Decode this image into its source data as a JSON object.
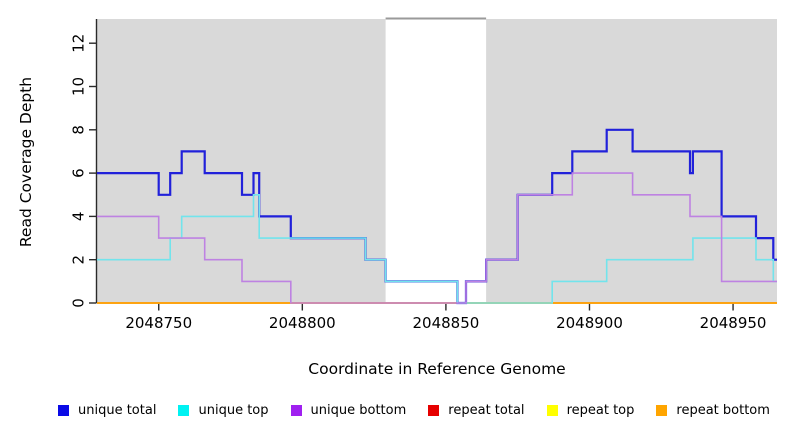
{
  "chart_data": {
    "type": "line",
    "subtype": "step",
    "title": "",
    "xlabel": "Coordinate in Reference Genome",
    "ylabel": "Read Coverage Depth",
    "xlim": [
      2048728.5,
      2048965.3
    ],
    "ylim": [
      0,
      13.1
    ],
    "x_ticks": [
      2048750,
      2048800,
      2048850,
      2048900,
      2048950
    ],
    "y_ticks": [
      0,
      2,
      4,
      6,
      8,
      10,
      12
    ],
    "grid": "off",
    "legend_position": "bottom",
    "plot_background": "#D9D9D9",
    "highlight_region": {
      "x0": 2048829,
      "x1": 2048864,
      "fill": "#FFFFFF",
      "top_border": "#9A9A9A"
    },
    "series": [
      {
        "name": "repeat total",
        "legend_color": "#E60000",
        "line_color": "#C41E3A",
        "line_width": 1.5,
        "xend": 2048965.3,
        "steps": [
          [
            2048728.5,
            0
          ]
        ]
      },
      {
        "name": "repeat top",
        "legend_color": "#FFFF00",
        "line_color": "#FFFF00",
        "line_width": 1.5,
        "xend": 2048965.3,
        "steps": [
          [
            2048728.5,
            0
          ]
        ]
      },
      {
        "name": "repeat bottom",
        "legend_color": "#FFA500",
        "line_color": "#FF9F0A",
        "line_width": 1.8,
        "xend": 2048965.3,
        "steps": [
          [
            2048728.5,
            0
          ]
        ]
      },
      {
        "name": "unique total",
        "legend_color": "#0A0AE6",
        "line_color": "#2121DA",
        "line_width": 2.2,
        "xend": 2048965.3,
        "steps": [
          [
            2048728.5,
            6
          ],
          [
            2048750,
            5
          ],
          [
            2048754,
            6
          ],
          [
            2048758,
            7
          ],
          [
            2048766,
            6
          ],
          [
            2048779,
            5
          ],
          [
            2048783,
            6
          ],
          [
            2048785,
            4
          ],
          [
            2048796,
            3
          ],
          [
            2048822,
            2
          ],
          [
            2048829,
            1
          ],
          [
            2048854,
            0
          ],
          [
            2048857,
            1
          ],
          [
            2048864,
            2
          ],
          [
            2048875,
            5
          ],
          [
            2048887,
            6
          ],
          [
            2048894,
            7
          ],
          [
            2048906,
            8
          ],
          [
            2048915,
            7
          ],
          [
            2048935,
            6
          ],
          [
            2048936,
            7
          ],
          [
            2048946,
            4
          ],
          [
            2048958,
            3
          ],
          [
            2048964,
            2
          ]
        ]
      },
      {
        "name": "unique top",
        "legend_color": "#00F2F2",
        "line_color": "#72E4EC",
        "line_width": 1.6,
        "xend": 2048965.3,
        "steps": [
          [
            2048728.5,
            2
          ],
          [
            2048754,
            3
          ],
          [
            2048758,
            4
          ],
          [
            2048783,
            5
          ],
          [
            2048785,
            3
          ],
          [
            2048822,
            2
          ],
          [
            2048829,
            1
          ],
          [
            2048854,
            0
          ],
          [
            2048887,
            1
          ],
          [
            2048906,
            2
          ],
          [
            2048936,
            3
          ],
          [
            2048958,
            2
          ],
          [
            2048964,
            1
          ]
        ]
      },
      {
        "name": "unique bottom",
        "legend_color": "#A020F0",
        "line_color": "#BE82E2",
        "line_width": 1.6,
        "xend": 2048965.3,
        "steps": [
          [
            2048728.5,
            4
          ],
          [
            2048750,
            3
          ],
          [
            2048766,
            2
          ],
          [
            2048779,
            1
          ],
          [
            2048796,
            0
          ],
          [
            2048857,
            1
          ],
          [
            2048864,
            2
          ],
          [
            2048875,
            5
          ],
          [
            2048894,
            6
          ],
          [
            2048915,
            5
          ],
          [
            2048935,
            4
          ],
          [
            2048946,
            1
          ]
        ]
      }
    ],
    "legend_order": [
      "unique total",
      "unique top",
      "unique bottom",
      "repeat total",
      "repeat top",
      "repeat bottom"
    ]
  }
}
